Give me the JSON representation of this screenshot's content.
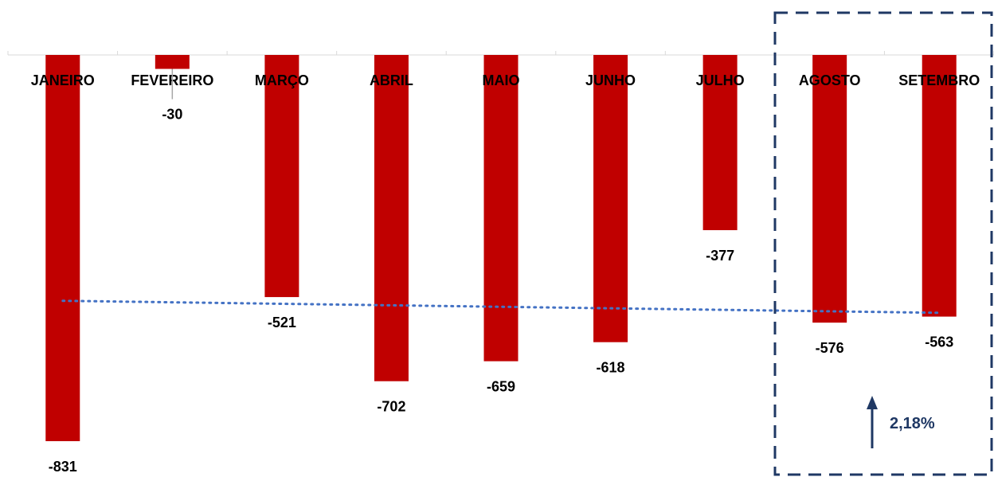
{
  "chart_data": {
    "type": "bar",
    "categories": [
      "JANEIRO",
      "FEVEREIRO",
      "MARÇO",
      "ABRIL",
      "MAIO",
      "JUNHO",
      "JULHO",
      "AGOSTO",
      "SETEMBRO"
    ],
    "values": [
      -831,
      -30,
      -521,
      -702,
      -659,
      -618,
      -377,
      -576,
      -563
    ],
    "data_labels": [
      "-831",
      "-30",
      "-521",
      "-702",
      "-659",
      "-618",
      "-377",
      "-576",
      "-563"
    ],
    "ylim": [
      -831,
      0
    ],
    "trendline": {
      "style": "dotted",
      "type": "linear",
      "color": "#4472c4"
    },
    "highlight": {
      "categories": [
        "AGOSTO",
        "SETEMBRO"
      ],
      "border": "dashed",
      "color": "#1f3864"
    },
    "annotation": {
      "text": "2,18%",
      "icon": "arrow-up-icon",
      "color": "#1f3864"
    },
    "bar_color": "#c00000",
    "grid": false
  }
}
